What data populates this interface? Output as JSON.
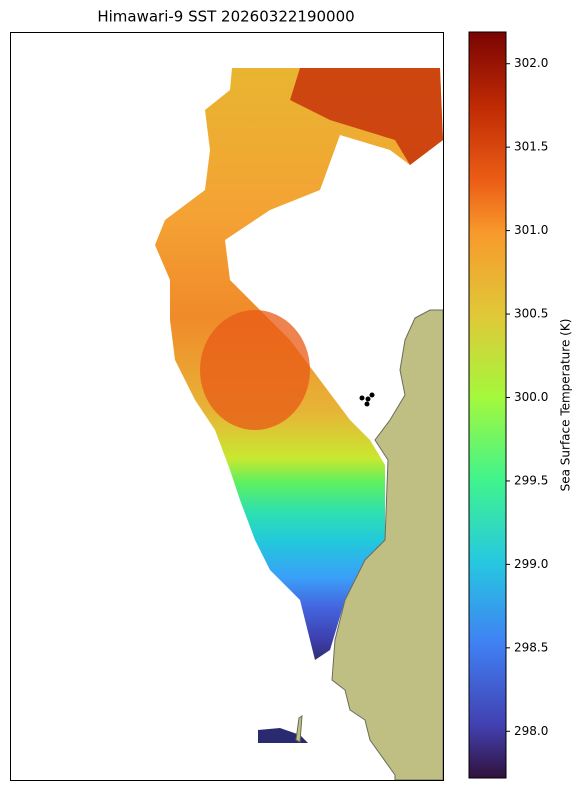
{
  "chart_data": {
    "type": "map",
    "title": "Himawari-9 SST 20260322190000",
    "colorbar_label": "Sea Surface Temperature (K)",
    "clim": [
      297.72,
      302.19
    ],
    "cticks": [
      {
        "value": 298.0,
        "label": "298.0"
      },
      {
        "value": 298.5,
        "label": "298.5"
      },
      {
        "value": 299.0,
        "label": "299.0"
      },
      {
        "value": 299.5,
        "label": "299.5"
      },
      {
        "value": 300.0,
        "label": "300.0"
      },
      {
        "value": 300.5,
        "label": "300.5"
      },
      {
        "value": 301.0,
        "label": "301.0"
      },
      {
        "value": 301.5,
        "label": "301.5"
      },
      {
        "value": 302.0,
        "label": "302.0"
      }
    ]
  }
}
